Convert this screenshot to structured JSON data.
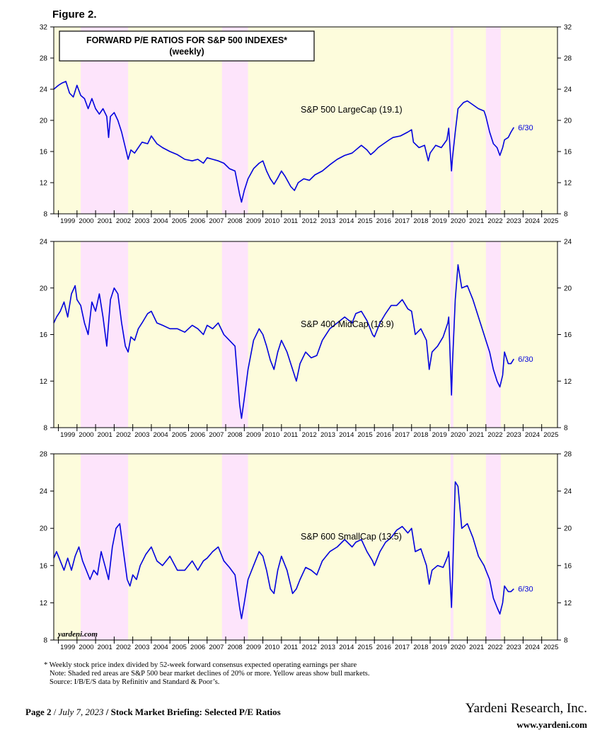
{
  "figure_label": "Figure 2.",
  "colors": {
    "line": "#0000dd",
    "bull": "#fdfcdc",
    "bear": "#fde4fb",
    "frame": "#000000"
  },
  "footnote": {
    "line1": "* Weekly stock price index divided by 52-week forward consensus expected operating earnings per share",
    "line2": "Note: Shaded red areas are S&P 500 bear market declines of 20% or more. Yellow areas show bull markets.",
    "line3": "Source: I/B/E/S data by Refinitiv and Standard & Poor’s."
  },
  "footer": {
    "page": "Page 2",
    "date": "July 7, 2023",
    "title": "Stock Market Briefing: Selected P/E Ratios",
    "company": "Yardeni Research, Inc.",
    "website": "www.yardeni.com"
  },
  "watermark": "yardeni.com",
  "chart_data": [
    {
      "type": "line",
      "title": "FORWARD P/E RATIOS FOR S&P 500 INDEXES*",
      "subtitle": "(weekly)",
      "series_label": "S&P 500 LargeCap (19.1)",
      "end_label": "6/30",
      "ylim": [
        8,
        32
      ],
      "yticks": [
        8,
        12,
        16,
        20,
        24,
        28,
        32
      ],
      "xlim": [
        1998.75,
        2025.85
      ],
      "xticks": [
        "1999",
        "2000",
        "2001",
        "2002",
        "2003",
        "2004",
        "2005",
        "2006",
        "2007",
        "2008",
        "2009",
        "2010",
        "2011",
        "2012",
        "2013",
        "2014",
        "2015",
        "2016",
        "2017",
        "2018",
        "2019",
        "2020",
        "2021",
        "2022",
        "2023",
        "2024",
        "2025"
      ],
      "bear_periods": [
        [
          2000.2,
          2002.75
        ],
        [
          2007.8,
          2009.2
        ],
        [
          2020.1,
          2020.25
        ],
        [
          2022.0,
          2022.8
        ]
      ],
      "series": [
        {
          "name": "S&P 500 LargeCap",
          "x": [
            1998.75,
            1999.0,
            1999.2,
            1999.4,
            1999.6,
            1999.8,
            2000.0,
            2000.2,
            2000.4,
            2000.6,
            2000.8,
            2001.0,
            2001.2,
            2001.4,
            2001.6,
            2001.7,
            2001.8,
            2002.0,
            2002.2,
            2002.4,
            2002.6,
            2002.75,
            2002.9,
            2003.1,
            2003.3,
            2003.5,
            2003.8,
            2004.0,
            2004.3,
            2004.6,
            2005.0,
            2005.4,
            2005.8,
            2006.2,
            2006.5,
            2006.8,
            2007.0,
            2007.3,
            2007.6,
            2007.9,
            2008.2,
            2008.5,
            2008.75,
            2008.85,
            2009.0,
            2009.2,
            2009.5,
            2009.8,
            2010.0,
            2010.2,
            2010.4,
            2010.6,
            2010.8,
            2011.0,
            2011.2,
            2011.5,
            2011.7,
            2011.9,
            2012.2,
            2012.5,
            2012.8,
            2013.2,
            2013.6,
            2014.0,
            2014.4,
            2014.8,
            2015.0,
            2015.3,
            2015.6,
            2015.8,
            2016.0,
            2016.2,
            2016.5,
            2016.8,
            2017.0,
            2017.4,
            2017.8,
            2018.0,
            2018.1,
            2018.4,
            2018.7,
            2018.9,
            2019.0,
            2019.3,
            2019.6,
            2019.9,
            2020.0,
            2020.15,
            2020.2,
            2020.35,
            2020.5,
            2020.8,
            2021.0,
            2021.3,
            2021.6,
            2021.9,
            2022.0,
            2022.2,
            2022.4,
            2022.6,
            2022.75,
            2022.9,
            2023.0,
            2023.2,
            2023.35,
            2023.5
          ],
          "values": [
            24.0,
            24.5,
            24.8,
            25.0,
            23.5,
            23.0,
            24.5,
            23.2,
            22.8,
            21.5,
            22.8,
            21.5,
            20.8,
            21.5,
            20.5,
            17.8,
            20.5,
            21.0,
            20.0,
            18.5,
            16.5,
            15.0,
            16.2,
            15.8,
            16.5,
            17.2,
            17.0,
            18.0,
            17.0,
            16.5,
            16.0,
            15.6,
            15.0,
            14.8,
            15.0,
            14.5,
            15.2,
            15.0,
            14.8,
            14.5,
            13.8,
            13.5,
            10.5,
            9.5,
            11.0,
            12.5,
            13.8,
            14.5,
            14.8,
            13.5,
            12.5,
            11.8,
            12.6,
            13.5,
            12.8,
            11.5,
            11.0,
            12.0,
            12.5,
            12.3,
            13.0,
            13.5,
            14.3,
            15.0,
            15.5,
            15.8,
            16.2,
            16.8,
            16.2,
            15.6,
            16.0,
            16.5,
            17.0,
            17.5,
            17.8,
            18.0,
            18.5,
            18.8,
            17.2,
            16.5,
            16.8,
            14.8,
            15.8,
            16.8,
            16.5,
            17.5,
            19.0,
            13.5,
            15.2,
            18.5,
            21.5,
            22.3,
            22.5,
            22.0,
            21.5,
            21.2,
            20.5,
            18.5,
            17.0,
            16.5,
            15.5,
            16.5,
            17.5,
            17.8,
            18.5,
            19.1
          ]
        }
      ]
    },
    {
      "type": "line",
      "series_label": "S&P 400 MidCap (13.9)",
      "end_label": "6/30",
      "ylim": [
        8,
        24
      ],
      "yticks": [
        8,
        12,
        16,
        20,
        24
      ],
      "xlim": [
        1998.75,
        2025.85
      ],
      "xticks": [
        "1999",
        "2000",
        "2001",
        "2002",
        "2003",
        "2004",
        "2005",
        "2006",
        "2007",
        "2008",
        "2009",
        "2010",
        "2011",
        "2012",
        "2013",
        "2014",
        "2015",
        "2016",
        "2017",
        "2018",
        "2019",
        "2020",
        "2021",
        "2022",
        "2023",
        "2024",
        "2025"
      ],
      "bear_periods": [
        [
          2000.2,
          2002.75
        ],
        [
          2007.8,
          2009.2
        ],
        [
          2020.1,
          2020.25
        ],
        [
          2022.0,
          2022.8
        ]
      ],
      "series": [
        {
          "name": "S&P 400 MidCap",
          "x": [
            1998.75,
            1998.9,
            1999.1,
            1999.3,
            1999.5,
            1999.7,
            1999.9,
            2000.0,
            2000.2,
            2000.4,
            2000.6,
            2000.8,
            2001.0,
            2001.2,
            2001.4,
            2001.6,
            2001.8,
            2002.0,
            2002.2,
            2002.4,
            2002.6,
            2002.75,
            2002.9,
            2003.1,
            2003.3,
            2003.5,
            2003.8,
            2004.0,
            2004.3,
            2004.6,
            2005.0,
            2005.4,
            2005.8,
            2006.2,
            2006.5,
            2006.8,
            2007.0,
            2007.3,
            2007.6,
            2007.9,
            2008.2,
            2008.5,
            2008.75,
            2008.85,
            2009.0,
            2009.2,
            2009.5,
            2009.8,
            2010.0,
            2010.2,
            2010.4,
            2010.6,
            2010.8,
            2011.0,
            2011.3,
            2011.6,
            2011.8,
            2012.0,
            2012.3,
            2012.6,
            2012.9,
            2013.2,
            2013.6,
            2014.0,
            2014.4,
            2014.8,
            2015.0,
            2015.3,
            2015.6,
            2015.9,
            2016.0,
            2016.3,
            2016.6,
            2016.9,
            2017.2,
            2017.5,
            2017.8,
            2018.0,
            2018.2,
            2018.5,
            2018.8,
            2018.95,
            2019.1,
            2019.4,
            2019.7,
            2019.95,
            2020.0,
            2020.15,
            2020.2,
            2020.35,
            2020.5,
            2020.7,
            2021.0,
            2021.3,
            2021.6,
            2021.9,
            2022.0,
            2022.2,
            2022.4,
            2022.6,
            2022.75,
            2022.9,
            2023.0,
            2023.2,
            2023.35,
            2023.5
          ],
          "values": [
            17.0,
            17.5,
            18.0,
            18.8,
            17.5,
            19.5,
            20.2,
            19.0,
            18.5,
            17.0,
            16.0,
            18.8,
            18.0,
            19.5,
            17.5,
            15.0,
            19.0,
            20.0,
            19.5,
            17.0,
            15.0,
            14.5,
            15.8,
            15.5,
            16.5,
            17.0,
            17.8,
            18.0,
            17.0,
            16.8,
            16.5,
            16.5,
            16.2,
            16.8,
            16.5,
            16.0,
            16.8,
            16.5,
            17.0,
            16.0,
            15.5,
            15.0,
            10.0,
            8.8,
            10.5,
            13.0,
            15.5,
            16.5,
            16.0,
            15.0,
            13.8,
            13.0,
            14.5,
            15.5,
            14.5,
            13.0,
            12.0,
            13.5,
            14.5,
            14.0,
            14.2,
            15.5,
            16.5,
            17.0,
            17.5,
            17.0,
            17.8,
            18.0,
            17.2,
            16.0,
            15.8,
            17.0,
            17.8,
            18.5,
            18.5,
            19.0,
            18.2,
            18.0,
            16.0,
            16.5,
            15.5,
            13.0,
            14.5,
            15.0,
            15.8,
            17.0,
            17.5,
            10.8,
            13.5,
            19.0,
            22.0,
            20.0,
            20.2,
            19.0,
            17.5,
            16.0,
            15.5,
            14.5,
            13.0,
            12.0,
            11.5,
            12.5,
            14.5,
            13.5,
            13.5,
            13.9
          ]
        }
      ]
    },
    {
      "type": "line",
      "series_label": "S&P 600 SmallCap (13.5)",
      "end_label": "6/30",
      "ylim": [
        8,
        28
      ],
      "yticks": [
        8,
        12,
        16,
        20,
        24,
        28
      ],
      "xlim": [
        1998.75,
        2025.85
      ],
      "xticks": [
        "1999",
        "2000",
        "2001",
        "2002",
        "2003",
        "2004",
        "2005",
        "2006",
        "2007",
        "2008",
        "2009",
        "2010",
        "2011",
        "2012",
        "2013",
        "2014",
        "2015",
        "2016",
        "2017",
        "2018",
        "2019",
        "2020",
        "2021",
        "2022",
        "2023",
        "2024",
        "2025"
      ],
      "bear_periods": [
        [
          2000.2,
          2002.75
        ],
        [
          2007.8,
          2009.2
        ],
        [
          2020.1,
          2020.25
        ],
        [
          2022.0,
          2022.8
        ]
      ],
      "series": [
        {
          "name": "S&P 600 SmallCap",
          "x": [
            1998.75,
            1998.9,
            1999.1,
            1999.3,
            1999.5,
            1999.7,
            1999.9,
            2000.1,
            2000.3,
            2000.5,
            2000.7,
            2000.9,
            2001.1,
            2001.3,
            2001.5,
            2001.7,
            2001.9,
            2002.1,
            2002.3,
            2002.5,
            2002.7,
            2002.85,
            2003.0,
            2003.2,
            2003.4,
            2003.7,
            2004.0,
            2004.3,
            2004.6,
            2005.0,
            2005.4,
            2005.8,
            2006.2,
            2006.5,
            2006.8,
            2007.0,
            2007.3,
            2007.6,
            2007.9,
            2008.2,
            2008.5,
            2008.75,
            2008.85,
            2009.0,
            2009.2,
            2009.5,
            2009.8,
            2010.0,
            2010.2,
            2010.4,
            2010.6,
            2010.8,
            2011.0,
            2011.3,
            2011.6,
            2011.8,
            2012.0,
            2012.3,
            2012.6,
            2012.9,
            2013.2,
            2013.6,
            2014.0,
            2014.4,
            2014.8,
            2015.0,
            2015.3,
            2015.6,
            2015.9,
            2016.0,
            2016.3,
            2016.6,
            2016.9,
            2017.2,
            2017.5,
            2017.8,
            2018.0,
            2018.2,
            2018.5,
            2018.8,
            2018.95,
            2019.1,
            2019.4,
            2019.7,
            2019.95,
            2020.0,
            2020.15,
            2020.2,
            2020.35,
            2020.5,
            2020.7,
            2021.0,
            2021.3,
            2021.6,
            2021.9,
            2022.0,
            2022.2,
            2022.4,
            2022.6,
            2022.75,
            2022.9,
            2023.0,
            2023.2,
            2023.35,
            2023.5
          ],
          "values": [
            16.8,
            17.5,
            16.5,
            15.5,
            16.8,
            15.5,
            17.0,
            18.0,
            16.5,
            15.5,
            14.5,
            15.5,
            15.0,
            17.5,
            16.0,
            14.5,
            18.0,
            20.0,
            20.5,
            17.5,
            14.5,
            13.8,
            15.0,
            14.5,
            16.0,
            17.2,
            18.0,
            16.5,
            16.0,
            17.0,
            15.5,
            15.5,
            16.5,
            15.5,
            16.5,
            16.8,
            17.5,
            18.0,
            16.5,
            15.8,
            15.0,
            11.5,
            10.3,
            12.0,
            14.5,
            16.0,
            17.5,
            17.0,
            15.5,
            13.5,
            13.0,
            15.5,
            17.0,
            15.5,
            13.0,
            13.5,
            14.5,
            15.8,
            15.5,
            15.0,
            16.5,
            17.5,
            18.0,
            18.8,
            18.0,
            18.5,
            18.8,
            17.5,
            16.5,
            16.0,
            17.5,
            18.5,
            19.0,
            19.8,
            20.2,
            19.5,
            20.0,
            17.5,
            17.8,
            16.0,
            14.0,
            15.5,
            16.0,
            15.8,
            17.0,
            17.5,
            11.5,
            14.5,
            25.0,
            24.5,
            20.0,
            20.5,
            19.0,
            17.0,
            16.0,
            15.5,
            14.5,
            12.5,
            11.5,
            10.8,
            12.0,
            13.8,
            13.2,
            13.2,
            13.5
          ]
        }
      ]
    }
  ]
}
